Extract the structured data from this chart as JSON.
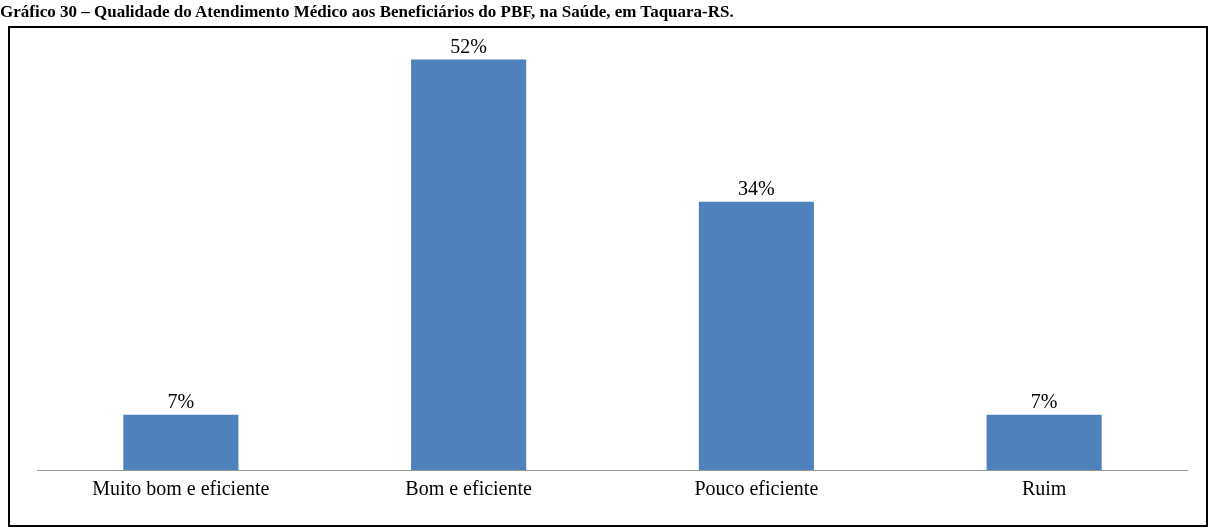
{
  "chart_data": {
    "type": "bar",
    "title": "Gráfico 30 – Qualidade do Atendimento Médico aos Beneficiários do PBF, na Saúde, em Taquara-RS.",
    "categories": [
      "Muito bom e eficiente",
      "Bom e eficiente",
      "Pouco eficiente",
      "Ruim"
    ],
    "values": [
      7,
      52,
      34,
      7
    ],
    "value_labels": [
      "7%",
      "52%",
      "34%",
      "7%"
    ],
    "color": "#4f81bd",
    "grid": false,
    "legend": false
  }
}
